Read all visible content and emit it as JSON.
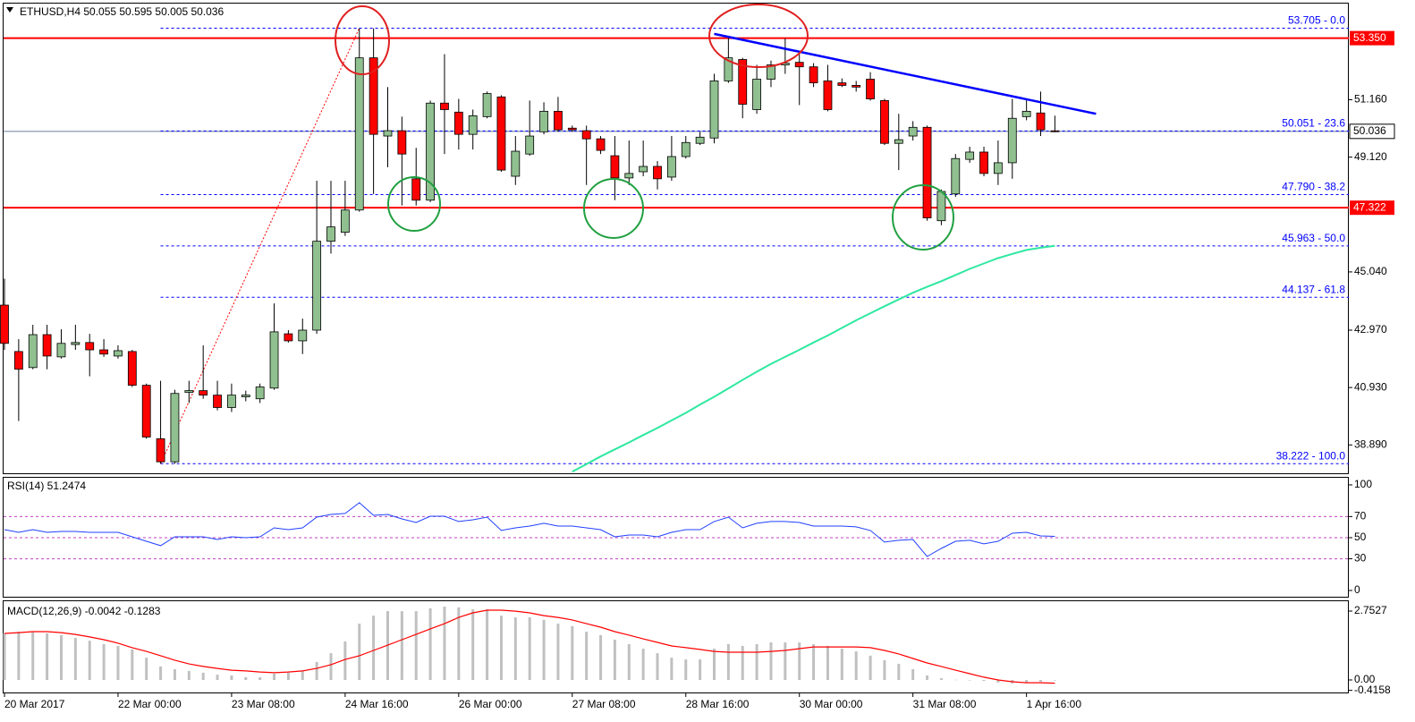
{
  "chart_data": [
    {
      "type": "candlestick",
      "title": "ETHUSD,H4  50.055 50.595 50.005 50.036",
      "categories": [
        "20 Mar 2017",
        null,
        null,
        null,
        null,
        null,
        null,
        null,
        "22 Mar 00:00",
        null,
        null,
        null,
        null,
        null,
        null,
        null,
        "23 Mar 08:00",
        null,
        null,
        null,
        null,
        null,
        null,
        null,
        "24 Mar 16:00",
        null,
        null,
        null,
        null,
        null,
        null,
        null,
        "26 Mar 00:00",
        null,
        null,
        null,
        null,
        null,
        null,
        null,
        "27 Mar 08:00",
        null,
        null,
        null,
        null,
        null,
        null,
        null,
        "28 Mar 16:00",
        null,
        null,
        null,
        null,
        null,
        null,
        null,
        "30 Mar 00:00",
        null,
        null,
        null,
        null,
        null,
        null,
        null,
        "31 Mar 08:00",
        null,
        null,
        null,
        null,
        null,
        null,
        null,
        "1 Apr 16:00",
        null,
        null
      ],
      "open": [
        43.86,
        42.21,
        41.64,
        42.81,
        42.02,
        42.46,
        42.53,
        42.27,
        42.05,
        42.21,
        41.01,
        39.11,
        38.29,
        40.76,
        40.82,
        40.66,
        40.22,
        40.6,
        40.53,
        40.91,
        42.84,
        42.59,
        42.97,
        46.13,
        46.45,
        47.24,
        52.65,
        49.87,
        50.06,
        48.35,
        47.59,
        51.04,
        50.72,
        49.93,
        50.56,
        51.26,
        48.44,
        49.23,
        50.02,
        50.75,
        50.15,
        50.06,
        49.77,
        49.17,
        48.38,
        48.6,
        48.79,
        48.41,
        49.14,
        49.61,
        49.8,
        51.83,
        52.59,
        50.81,
        51.89,
        52.4,
        52.49,
        52.33,
        51.83,
        51.76,
        51.67,
        51.89,
        51.13,
        49.61,
        49.87,
        50.18,
        46.86,
        47.81,
        49.04,
        49.3,
        48.54,
        48.92,
        50.56,
        50.69,
        50.055
      ],
      "high": [
        44.8,
        42.65,
        43.16,
        43.16,
        43.0,
        43.16,
        42.84,
        42.65,
        42.43,
        42.27,
        41.07,
        41.17,
        40.85,
        41.17,
        42.43,
        41.17,
        41.07,
        40.82,
        41.07,
        43.92,
        42.97,
        43.38,
        48.28,
        48.28,
        48.28,
        53.7,
        53.7,
        51.61,
        50.56,
        49.45,
        51.13,
        52.78,
        51.19,
        50.81,
        51.45,
        51.32,
        49.87,
        51.13,
        51.07,
        51.26,
        50.24,
        50.24,
        49.87,
        49.87,
        49.71,
        49.71,
        48.98,
        49.87,
        49.87,
        50.02,
        52.08,
        53.41,
        52.65,
        52.4,
        52.55,
        53.34,
        52.87,
        52.46,
        52.4,
        51.92,
        51.83,
        52.14,
        51.19,
        50.66,
        50.4,
        50.24,
        47.97,
        49.23,
        49.49,
        49.49,
        49.71,
        51.19,
        51.19,
        51.45,
        50.595
      ],
      "low": [
        42.27,
        39.74,
        41.58,
        41.58,
        41.96,
        42.27,
        41.33,
        42.02,
        41.96,
        40.95,
        39.11,
        38.22,
        38.22,
        40.38,
        40.53,
        40.12,
        40.06,
        40.44,
        40.38,
        40.85,
        42.53,
        42.12,
        42.84,
        45.69,
        46.32,
        47.18,
        47.81,
        48.76,
        47.4,
        47.4,
        47.52,
        49.23,
        49.39,
        49.39,
        50.5,
        48.6,
        48.13,
        49.17,
        49.93,
        50.02,
        50.02,
        48.13,
        49.23,
        47.59,
        48.13,
        48.44,
        47.97,
        48.28,
        49.07,
        49.55,
        49.61,
        51.76,
        50.5,
        50.66,
        51.61,
        52.08,
        50.97,
        51.61,
        50.75,
        51.61,
        51.45,
        51.13,
        49.55,
        48.66,
        49.71,
        46.86,
        46.7,
        47.71,
        48.92,
        48.44,
        48.13,
        48.35,
        50.43,
        49.87,
        50.005
      ],
      "close": [
        42.5,
        41.58,
        42.81,
        42.05,
        42.5,
        42.53,
        42.27,
        42.12,
        42.24,
        41.01,
        39.17,
        38.29,
        40.72,
        40.82,
        40.66,
        40.22,
        40.66,
        40.66,
        40.95,
        42.91,
        42.59,
        42.97,
        46.13,
        46.64,
        47.24,
        52.65,
        49.93,
        50.06,
        49.23,
        47.59,
        51.04,
        50.81,
        49.93,
        50.59,
        51.38,
        48.66,
        49.33,
        49.87,
        50.75,
        50.09,
        50.09,
        49.77,
        49.36,
        48.38,
        48.54,
        48.79,
        48.35,
        49.14,
        49.64,
        49.83,
        51.83,
        52.65,
        51.0,
        51.89,
        52.4,
        52.46,
        52.33,
        51.76,
        50.81,
        51.67,
        51.61,
        51.19,
        49.61,
        49.74,
        50.18,
        46.96,
        47.9,
        49.07,
        49.3,
        48.54,
        48.92,
        50.5,
        50.75,
        50.09,
        50.036
      ],
      "up_color": "#90c090",
      "down_color": "#ff0000",
      "ylim": [
        37.85,
        54.61
      ],
      "yticks": [
        {
          "value": 51.16,
          "label": "51.160"
        },
        {
          "value": 49.12,
          "label": "49.120"
        },
        {
          "value": 45.04,
          "label": "45.040"
        },
        {
          "value": 42.97,
          "label": "42.970"
        },
        {
          "value": 40.93,
          "label": "40.930"
        },
        {
          "value": 38.89,
          "label": "38.890"
        }
      ],
      "levels": [
        {
          "value": 53.35,
          "label": "53.350"
        },
        {
          "value": 47.322,
          "label": "47.322"
        }
      ],
      "level_color": "#ff0000",
      "current_price": {
        "value": 50.036,
        "label": "50.036"
      },
      "fibonacci": [
        {
          "value": 53.705,
          "label": "53.705 - 0.0"
        },
        {
          "value": 50.051,
          "label": "50.051 - 23.6"
        },
        {
          "value": 47.79,
          "label": "47.790 - 38.2"
        },
        {
          "value": 45.963,
          "label": "45.963 - 50.0"
        },
        {
          "value": 44.137,
          "label": "44.137 - 61.8"
        },
        {
          "value": 38.222,
          "label": "38.222 - 100.0"
        }
      ],
      "fib_color": "#0000ff",
      "fib_base": {
        "x": [
          11,
          25
        ],
        "values": [
          38.222,
          53.705
        ],
        "color": "#ff0000"
      },
      "trendline": {
        "x": [
          50,
          76.9
        ],
        "values": [
          53.5,
          50.66
        ],
        "color": "#0000ff"
      },
      "ma": {
        "color": "#2ee8a0",
        "values": [
          null,
          null,
          null,
          null,
          null,
          null,
          null,
          null,
          null,
          null,
          null,
          null,
          null,
          null,
          null,
          null,
          null,
          null,
          null,
          null,
          null,
          null,
          null,
          null,
          null,
          null,
          null,
          null,
          null,
          null,
          null,
          null,
          null,
          null,
          null,
          null,
          null,
          null,
          null,
          null,
          37.94,
          38.21,
          38.48,
          38.73,
          38.98,
          39.24,
          39.49,
          39.76,
          40.03,
          40.32,
          40.6,
          40.9,
          41.2,
          41.49,
          41.77,
          42.02,
          42.27,
          42.53,
          42.78,
          43.05,
          43.32,
          43.57,
          43.82,
          44.06,
          44.3,
          44.51,
          44.71,
          44.93,
          45.15,
          45.34,
          45.53,
          45.68,
          45.82,
          45.9,
          45.97
        ]
      }
    },
    {
      "type": "line",
      "title": "RSI(14) 51.2474",
      "series": [
        {
          "color": "#2040ff",
          "values": [
            57.6,
            55.1,
            57.6,
            55.1,
            55.9,
            55.9,
            55.1,
            55.1,
            55.1,
            50.8,
            46.6,
            42.4,
            50.8,
            50.8,
            50.8,
            48.3,
            50.8,
            50.0,
            50.8,
            59.3,
            57.6,
            59.3,
            69.5,
            72.0,
            72.9,
            83.1,
            71.2,
            72.0,
            67.8,
            64.4,
            70.3,
            70.3,
            65.3,
            66.9,
            69.5,
            56.8,
            59.3,
            61.0,
            63.6,
            61.0,
            61.0,
            59.3,
            57.6,
            50.8,
            52.5,
            52.5,
            50.8,
            55.1,
            57.6,
            57.6,
            65.3,
            69.5,
            59.3,
            63.6,
            65.3,
            65.3,
            64.4,
            61.0,
            61.0,
            61.0,
            60.2,
            56.8,
            45.8,
            47.5,
            48.3,
            32.2,
            39.8,
            46.6,
            47.5,
            44.1,
            46.6,
            54.2,
            55.1,
            51.7,
            51.2474
          ]
        }
      ],
      "ylim": [
        -6.8,
        107.6
      ],
      "yticks": [
        100,
        70,
        50,
        30,
        0
      ],
      "levels": [
        70,
        50,
        30
      ],
      "level_color": "#c040c0"
    },
    {
      "type": "macd",
      "title": "MACD(12,26,9) -0.0042 -0.1283",
      "values": [
        1.86,
        1.93,
        1.93,
        1.86,
        1.79,
        1.68,
        1.57,
        1.43,
        1.36,
        1.22,
        0.89,
        0.54,
        0.43,
        0.36,
        0.29,
        0.21,
        0.18,
        0.11,
        0.11,
        0.25,
        0.29,
        0.36,
        0.72,
        1.07,
        1.54,
        2.25,
        2.57,
        2.75,
        2.75,
        2.75,
        2.86,
        2.93,
        2.9,
        2.82,
        2.82,
        2.57,
        2.5,
        2.5,
        2.4,
        2.25,
        2.15,
        1.93,
        1.79,
        1.61,
        1.43,
        1.25,
        1.07,
        0.89,
        0.82,
        0.82,
        1.25,
        1.43,
        1.36,
        1.43,
        1.5,
        1.5,
        1.5,
        1.43,
        1.36,
        1.25,
        1.14,
        0.97,
        0.79,
        0.64,
        0.43,
        0.18,
        0.07,
        0.01,
        -0.01,
        -0.04,
        -0.11,
        -0.14,
        -0.11,
        -0.07,
        -0.0042
      ],
      "color": "#c0c0c0",
      "signal": {
        "color": "#ff0000",
        "values": [
          1.86,
          1.89,
          1.93,
          1.93,
          1.89,
          1.82,
          1.72,
          1.61,
          1.47,
          1.29,
          1.14,
          0.97,
          0.79,
          0.64,
          0.54,
          0.46,
          0.39,
          0.36,
          0.32,
          0.29,
          0.32,
          0.36,
          0.46,
          0.61,
          0.82,
          0.97,
          1.18,
          1.39,
          1.61,
          1.82,
          2.04,
          2.25,
          2.5,
          2.68,
          2.79,
          2.79,
          2.75,
          2.68,
          2.57,
          2.5,
          2.4,
          2.25,
          2.11,
          1.93,
          1.79,
          1.64,
          1.5,
          1.36,
          1.29,
          1.22,
          1.14,
          1.11,
          1.11,
          1.11,
          1.14,
          1.18,
          1.25,
          1.32,
          1.32,
          1.32,
          1.32,
          1.29,
          1.18,
          1.04,
          0.86,
          0.68,
          0.54,
          0.39,
          0.25,
          0.11,
          0.0,
          -0.07,
          -0.11,
          -0.11,
          -0.1283
        ]
      },
      "ylim": [
        -0.536,
        3.182
      ],
      "yticks": [
        {
          "value": 2.7527,
          "label": "2.7527"
        },
        {
          "value": 0,
          "label": "0.00"
        },
        {
          "value": -0.4158,
          "label": "-0.4158"
        }
      ]
    }
  ]
}
